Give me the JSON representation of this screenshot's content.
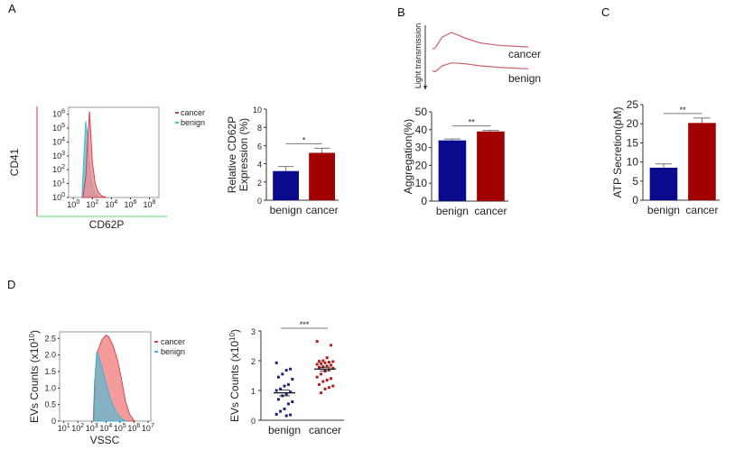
{
  "panels": {
    "a": "A",
    "b": "B",
    "c": "C",
    "d": "D"
  },
  "colors": {
    "benign_bar": "#0a0a8c",
    "cancer_bar": "#a00000",
    "cancer_hist": "#f4898b",
    "benign_hist": "#5fb8d0",
    "benign_dot": "#1a237e",
    "cancer_dot": "#b71c1c"
  },
  "chart_data": [
    {
      "id": "A-histogram",
      "type": "area",
      "title": "",
      "xlabel": "CD62P",
      "ylabel": "CD41",
      "xscale": "log",
      "yscale": "log",
      "x_tick_labels": [
        "10^0",
        "10^2",
        "10^4",
        "10^6",
        "10^8"
      ],
      "y_tick_labels": [
        "10^0",
        "10^1",
        "10^2",
        "10^3",
        "10^4",
        "10^5",
        "10^6"
      ],
      "xlim_log10": [
        -0.5,
        9
      ],
      "ylim_log10": [
        0,
        6.5
      ],
      "legend": [
        "cancer",
        "benign"
      ],
      "legend_position": "right",
      "series": [
        {
          "name": "cancer",
          "x_log10": [
            1.0,
            1.3,
            1.5,
            1.7,
            1.8,
            2.0,
            2.3,
            2.6,
            3.0,
            3.5
          ],
          "y_log10": [
            0,
            1.5,
            4,
            6.2,
            5.0,
            2.5,
            1.0,
            0.4,
            0.1,
            0
          ]
        },
        {
          "name": "benign",
          "x_log10": [
            0.9,
            1.1,
            1.3,
            1.5,
            1.7,
            2.0,
            2.3,
            2.8
          ],
          "y_log10": [
            0,
            3.0,
            5.5,
            4.5,
            2.5,
            1.0,
            0.3,
            0
          ]
        }
      ]
    },
    {
      "id": "A-bar",
      "type": "bar",
      "categories": [
        "benign",
        "cancer"
      ],
      "values": [
        3.2,
        5.2
      ],
      "errors": [
        0.5,
        0.5
      ],
      "ylabel": "Relative CD62P\nExpression (%)",
      "ylabel_lines": [
        "Relative CD62P",
        "Expression (%)"
      ],
      "ylim": [
        0,
        10
      ],
      "yticks": [
        0,
        2,
        4,
        6,
        8,
        10
      ],
      "significance": "*"
    },
    {
      "id": "B-trace",
      "type": "line",
      "ylabel": "Light transmission",
      "series": [
        {
          "name": "cancer",
          "x": [
            0,
            0.03,
            0.1,
            0.2,
            0.35,
            0.5,
            0.7,
            1.0
          ],
          "y": [
            0.3,
            0.35,
            0.8,
            1.0,
            0.75,
            0.55,
            0.45,
            0.38
          ]
        },
        {
          "name": "benign",
          "x": [
            0,
            0.03,
            0.1,
            0.2,
            0.35,
            0.5,
            0.7,
            1.0
          ],
          "y": [
            0.25,
            0.2,
            0.5,
            0.65,
            0.6,
            0.5,
            0.42,
            0.35
          ]
        }
      ]
    },
    {
      "id": "B-bar",
      "type": "bar",
      "categories": [
        "benign",
        "cancer"
      ],
      "values": [
        34,
        39
      ],
      "errors": [
        0.8,
        0.6
      ],
      "ylabel": "Aggregation(%)",
      "ylim": [
        0,
        50
      ],
      "yticks": [
        0,
        10,
        20,
        30,
        40,
        50
      ],
      "significance": "**"
    },
    {
      "id": "C-bar",
      "type": "bar",
      "categories": [
        "benign",
        "cancer"
      ],
      "values": [
        8.5,
        20.2
      ],
      "errors": [
        1.0,
        1.3
      ],
      "ylabel": "ATP Secretion(pM)",
      "ylim": [
        0,
        25
      ],
      "yticks": [
        0,
        5,
        10,
        15,
        20,
        25
      ],
      "significance": "**"
    },
    {
      "id": "D-histogram",
      "type": "area",
      "xlabel": "VSSC",
      "ylabel": "EVs Counts (x10^10)",
      "xscale": "log",
      "x_tick_labels": [
        "10^1",
        "10^2",
        "10^3",
        "10^4",
        "10^5",
        "10^6",
        "10^7"
      ],
      "xlim_log10": [
        0.7,
        7.2
      ],
      "ylim": [
        0,
        2.7
      ],
      "yticks": [
        "0",
        "0.5",
        "1.0",
        "1.5",
        "2.0",
        "2.5"
      ],
      "legend": [
        "cancer",
        "benign"
      ],
      "legend_position": "right",
      "series": [
        {
          "name": "cancer",
          "x_log10": [
            3.1,
            3.2,
            3.4,
            3.7,
            4.0,
            4.2,
            4.5,
            4.8,
            5.1,
            5.4,
            5.7,
            6.0,
            6.1
          ],
          "y": [
            0,
            1.2,
            2.1,
            2.45,
            2.6,
            2.55,
            2.3,
            1.9,
            1.3,
            0.6,
            0.2,
            0.02,
            0
          ]
        },
        {
          "name": "benign",
          "x_log10": [
            3.15,
            3.25,
            3.35,
            3.5,
            3.8,
            4.1,
            4.4,
            4.7,
            5.0,
            5.3,
            5.5
          ],
          "y": [
            0,
            1.5,
            2.1,
            1.95,
            1.5,
            1.0,
            0.6,
            0.3,
            0.12,
            0.03,
            0
          ]
        }
      ]
    },
    {
      "id": "D-scatter",
      "type": "scatter",
      "categories": [
        "benign",
        "cancer"
      ],
      "ylabel": "EVs Counts (x10^10)",
      "ylim": [
        0,
        3
      ],
      "yticks": [
        0,
        1,
        2,
        3
      ],
      "significance": "***",
      "series": [
        {
          "name": "benign",
          "mean": 0.92,
          "sem": 0.1,
          "values": [
            1.93,
            1.72,
            1.68,
            1.55,
            1.45,
            1.38,
            1.2,
            1.15,
            1.05,
            1.0,
            0.95,
            0.88,
            0.82,
            0.7,
            0.62,
            0.55,
            0.38,
            0.3,
            0.2,
            0.18,
            0.15
          ]
        },
        {
          "name": "cancer",
          "mean": 1.72,
          "sem": 0.06,
          "values": [
            2.65,
            2.52,
            2.1,
            2.0,
            1.98,
            1.97,
            1.95,
            1.93,
            1.9,
            1.88,
            1.85,
            1.82,
            1.8,
            1.78,
            1.75,
            1.7,
            1.65,
            1.55,
            1.45,
            1.4,
            1.35,
            1.3,
            1.2,
            1.15,
            1.1,
            1.05,
            0.92
          ]
        }
      ]
    }
  ]
}
